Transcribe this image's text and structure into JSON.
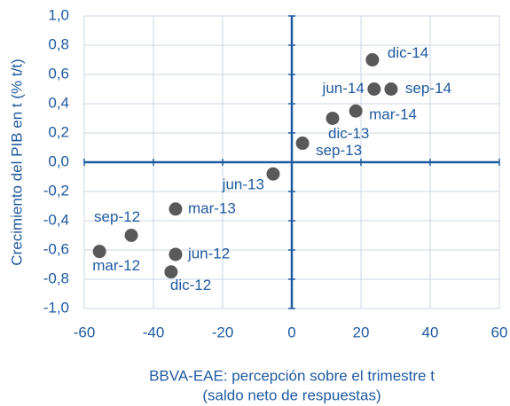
{
  "chart_data": {
    "type": "scatter",
    "x_label": "BBVA-EAE: percepción sobre el trimestre t",
    "x_label_2": "(saldo neto de respuestas)",
    "y_label": "Crecimiento del PIB en t (% t/t)",
    "labels": [
      "dic-14",
      "jun-14",
      "sep-14",
      "mar-14",
      "dic-13",
      "sep-13",
      "jun-13",
      "mar-13",
      "sep-12",
      "mar-12",
      "jun-12",
      "dic-12"
    ],
    "x": [
      23.3,
      23.8,
      28.7,
      18.5,
      11.8,
      3.1,
      -5.4,
      -33.6,
      -46.4,
      -55.6,
      -33.6,
      -34.9
    ],
    "y": [
      0.7,
      0.5,
      0.5,
      0.35,
      0.3,
      0.13,
      -0.08,
      -0.32,
      -0.5,
      -0.61,
      -0.63,
      -0.75
    ],
    "color": "#595959",
    "xlim": [
      -60,
      60
    ],
    "xticks": [
      -60,
      -40,
      -20,
      0,
      20,
      40,
      60
    ],
    "ylim": [
      -1,
      1
    ],
    "yticks": [
      {
        "value": -1,
        "label": "-1,0"
      },
      {
        "value": -0.8,
        "label": "-0,8"
      },
      {
        "value": -0.6,
        "label": "-0,6"
      },
      {
        "value": -0.4,
        "label": "-0,4"
      },
      {
        "value": -0.2,
        "label": "-0,2"
      },
      {
        "value": 0,
        "label": "0,0"
      },
      {
        "value": 0.2,
        "label": "0,2"
      },
      {
        "value": 0.4,
        "label": "0,4"
      },
      {
        "value": 0.6,
        "label": "0,6"
      },
      {
        "value": 0.8,
        "label": "0,8"
      },
      {
        "value": 1,
        "label": "1,0"
      }
    ],
    "grid": true
  }
}
